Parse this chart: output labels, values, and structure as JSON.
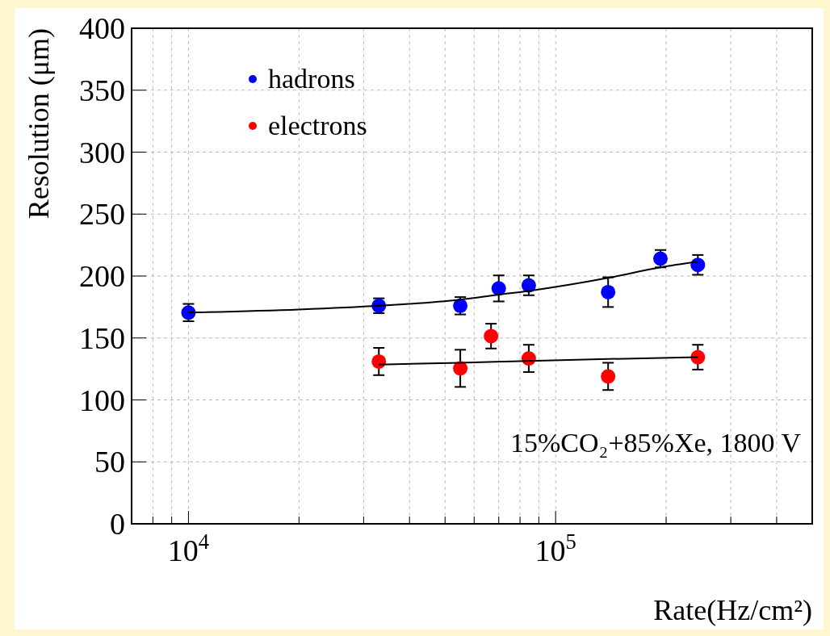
{
  "chart_data": {
    "type": "scatter",
    "xlabel": "Rate(Hz/cm²)",
    "ylabel": "Resolution (μm)",
    "log": "x",
    "grid": true,
    "legend": "top left",
    "marker": "circle",
    "xlim": [
      7000,
      500000
    ],
    "xticks": [
      {
        "value": 7000,
        "label": null
      },
      {
        "value": 8000,
        "label": null
      },
      {
        "value": 9000,
        "label": null
      },
      {
        "value": 10000,
        "label": "10$^{4}$"
      },
      {
        "value": 20000,
        "label": null
      },
      {
        "value": 30000,
        "label": null
      },
      {
        "value": 40000,
        "label": null
      },
      {
        "value": 50000,
        "label": null
      },
      {
        "value": 60000,
        "label": null
      },
      {
        "value": 70000,
        "label": null
      },
      {
        "value": 80000,
        "label": null
      },
      {
        "value": 90000,
        "label": null
      },
      {
        "value": 100000,
        "label": "10$^{5}$"
      },
      {
        "value": 200000,
        "label": null
      },
      {
        "value": 300000,
        "label": null
      },
      {
        "value": 400000,
        "label": null
      }
    ],
    "ylim": [
      0,
      400
    ],
    "yticks": [
      0,
      50,
      100,
      150,
      200,
      250,
      300,
      350,
      400
    ],
    "annotations": [
      "15%CO₂+85%Xe, 1800 V"
    ],
    "series": [
      {
        "name": "hadrons",
        "color": "#0000ff",
        "x": [
          10000,
          33000,
          55000,
          70000,
          84500,
          139000,
          193000,
          244000
        ],
        "values": [
          170.5,
          176,
          176,
          190,
          192.5,
          187,
          214,
          209
        ],
        "errors": [
          7,
          6,
          7,
          10.5,
          8,
          12,
          7,
          8
        ]
      },
      {
        "name": "electrons",
        "color": "#ff0000",
        "x": [
          33000,
          55000,
          66700,
          84500,
          139000,
          244000
        ],
        "values": [
          131,
          125.5,
          151.5,
          133.5,
          119,
          134.5
        ],
        "errors": [
          11,
          15,
          10,
          11,
          11,
          10
        ]
      },
      {
        "type": "line",
        "color": "#000000",
        "marker": "none",
        "x": [
          10000,
          20000,
          33000,
          55000,
          70000,
          84500,
          139000,
          193000,
          244000
        ],
        "values": [
          170.5,
          173,
          176,
          181,
          185,
          188,
          198.5,
          207,
          211.5
        ]
      },
      {
        "type": "line",
        "color": "#000000",
        "marker": "none",
        "x": [
          33000,
          55000,
          84500,
          139000,
          244000
        ],
        "values": [
          128.5,
          130,
          131.5,
          133,
          134.5
        ]
      }
    ]
  }
}
